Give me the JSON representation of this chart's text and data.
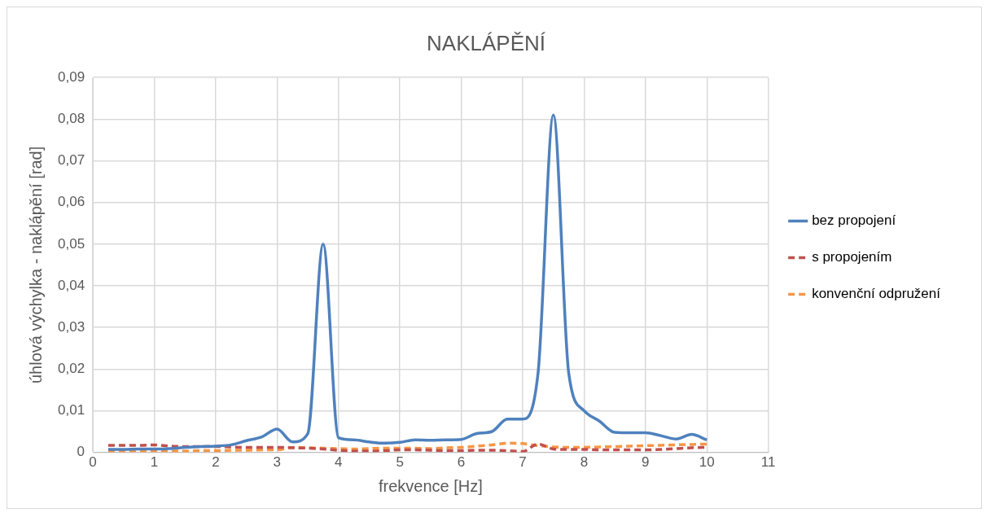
{
  "chart_data": {
    "type": "line",
    "title": "NAKLÁPĚNÍ",
    "xlabel": "frekvence [Hz]",
    "ylabel": "úhlová výchylka - naklápění [rad]",
    "x": [
      0.25,
      0.5,
      0.75,
      1,
      1.25,
      1.5,
      1.75,
      2,
      2.25,
      2.5,
      2.75,
      3,
      3.25,
      3.5,
      3.75,
      4,
      4.25,
      4.5,
      4.75,
      5,
      5.25,
      5.5,
      5.75,
      6,
      6.25,
      6.5,
      6.75,
      7,
      7.25,
      7.5,
      7.75,
      8,
      8.25,
      8.5,
      8.75,
      9,
      9.25,
      9.5,
      9.75,
      10
    ],
    "series": [
      {
        "name": "bez propojení",
        "color": "#4f81bd",
        "line_style": "solid",
        "values": [
          0.0007,
          0.0007,
          0.0008,
          0.0008,
          0.0009,
          0.0012,
          0.0014,
          0.0015,
          0.0018,
          0.0028,
          0.0037,
          0.0056,
          0.0025,
          0.0045,
          0.05,
          0.0035,
          0.003,
          0.0025,
          0.0022,
          0.0024,
          0.003,
          0.0029,
          0.003,
          0.0031,
          0.0045,
          0.005,
          0.008,
          0.008,
          0.019,
          0.081,
          0.019,
          0.01,
          0.0075,
          0.0048,
          0.0047,
          0.0047,
          0.004,
          0.0032,
          0.0043,
          0.003
        ]
      },
      {
        "name": "s propojením",
        "color": "#c0504d",
        "line_style": "dashed",
        "values": [
          0.0017,
          0.0017,
          0.0017,
          0.0018,
          0.0015,
          0.0014,
          0.0014,
          0.0014,
          0.0013,
          0.0012,
          0.0012,
          0.0012,
          0.0011,
          0.001,
          0.0008,
          0.0005,
          0.0003,
          0.0003,
          0.0004,
          0.0006,
          0.0006,
          0.0005,
          0.0004,
          0.0004,
          0.0005,
          0.0005,
          0.0004,
          0.0002,
          0.002,
          0.0008,
          0.0007,
          0.0007,
          0.0006,
          0.0006,
          0.0006,
          0.0006,
          0.0007,
          0.0009,
          0.0011,
          0.0012
        ]
      },
      {
        "name": "konvenční odpružení",
        "color": "#f79646",
        "line_style": "dashed",
        "values": [
          0.0002,
          0.0002,
          0.0003,
          0.0003,
          0.0003,
          0.0003,
          0.0004,
          0.0004,
          0.0005,
          0.0005,
          0.0006,
          0.0006,
          0.0012,
          0.0011,
          0.001,
          0.0009,
          0.0008,
          0.0009,
          0.001,
          0.001,
          0.001,
          0.0009,
          0.0011,
          0.0012,
          0.0015,
          0.0018,
          0.0022,
          0.0021,
          0.0016,
          0.0013,
          0.0012,
          0.0012,
          0.0013,
          0.0014,
          0.0015,
          0.0016,
          0.0017,
          0.0018,
          0.0019,
          0.002
        ]
      }
    ],
    "xlim": [
      0,
      11
    ],
    "xticks": [
      0,
      1,
      2,
      3,
      4,
      5,
      6,
      7,
      8,
      9,
      10,
      11
    ],
    "ylim": [
      0,
      0.09
    ],
    "yticks": [
      0,
      {
        "value": 0.01,
        "label": "0,01"
      },
      {
        "value": 0.02,
        "label": "0,02"
      },
      {
        "value": 0.03,
        "label": "0,03"
      },
      {
        "value": 0.04,
        "label": "0,04"
      },
      {
        "value": 0.05,
        "label": "0,05"
      },
      {
        "value": 0.06,
        "label": "0,06"
      },
      {
        "value": 0.07,
        "label": "0,07"
      },
      {
        "value": 0.08,
        "label": "0,08"
      },
      {
        "value": 0.09,
        "label": "0,09"
      }
    ],
    "grid": true,
    "legend": "right",
    "marker": "none"
  }
}
